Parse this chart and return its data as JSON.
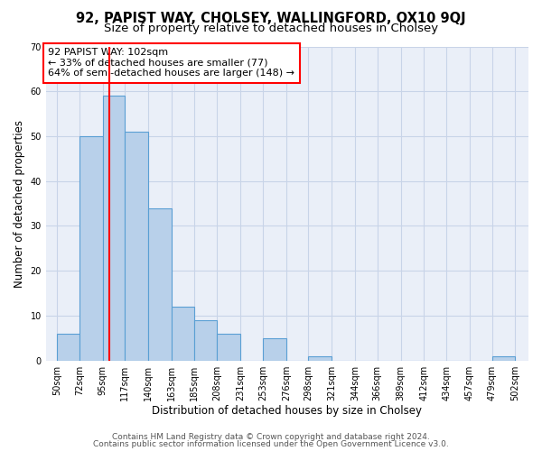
{
  "title1": "92, PAPIST WAY, CHOLSEY, WALLINGFORD, OX10 9QJ",
  "title2": "Size of property relative to detached houses in Cholsey",
  "xlabel": "Distribution of detached houses by size in Cholsey",
  "ylabel": "Number of detached properties",
  "bar_left_edges": [
    50,
    72,
    95,
    117,
    140,
    163,
    185,
    208,
    231,
    253,
    276,
    298,
    321,
    344,
    366,
    389,
    412,
    434,
    457,
    479
  ],
  "bar_widths": [
    22,
    23,
    22,
    23,
    23,
    22,
    23,
    23,
    22,
    23,
    22,
    23,
    23,
    22,
    23,
    23,
    22,
    23,
    22,
    23
  ],
  "bar_heights": [
    6,
    50,
    59,
    51,
    34,
    12,
    9,
    6,
    0,
    5,
    0,
    1,
    0,
    0,
    0,
    0,
    0,
    0,
    0,
    1
  ],
  "bar_color": "#b8d0ea",
  "bar_edge_color": "#5a9fd4",
  "property_line_x": 102,
  "property_line_color": "red",
  "annotation_line1": "92 PAPIST WAY: 102sqm",
  "annotation_line2": "← 33% of detached houses are smaller (77)",
  "annotation_line3": "64% of semi-detached houses are larger (148) →",
  "annotation_box_color": "white",
  "annotation_box_edge_color": "red",
  "x_tick_labels": [
    "50sqm",
    "72sqm",
    "95sqm",
    "117sqm",
    "140sqm",
    "163sqm",
    "185sqm",
    "208sqm",
    "231sqm",
    "253sqm",
    "276sqm",
    "298sqm",
    "321sqm",
    "344sqm",
    "366sqm",
    "389sqm",
    "412sqm",
    "434sqm",
    "457sqm",
    "479sqm",
    "502sqm"
  ],
  "x_tick_positions": [
    50,
    72,
    95,
    117,
    140,
    163,
    185,
    208,
    231,
    253,
    276,
    298,
    321,
    344,
    366,
    389,
    412,
    434,
    457,
    479,
    502
  ],
  "ylim": [
    0,
    70
  ],
  "xlim": [
    39,
    515
  ],
  "yticks": [
    0,
    10,
    20,
    30,
    40,
    50,
    60,
    70
  ],
  "grid_color": "#c8d4e8",
  "background_color": "#eaeff8",
  "footer_line1": "Contains HM Land Registry data © Crown copyright and database right 2024.",
  "footer_line2": "Contains public sector information licensed under the Open Government Licence v3.0.",
  "title1_fontsize": 10.5,
  "title2_fontsize": 9.5,
  "xlabel_fontsize": 8.5,
  "ylabel_fontsize": 8.5,
  "tick_fontsize": 7,
  "annotation_fontsize": 8,
  "footer_fontsize": 6.5
}
